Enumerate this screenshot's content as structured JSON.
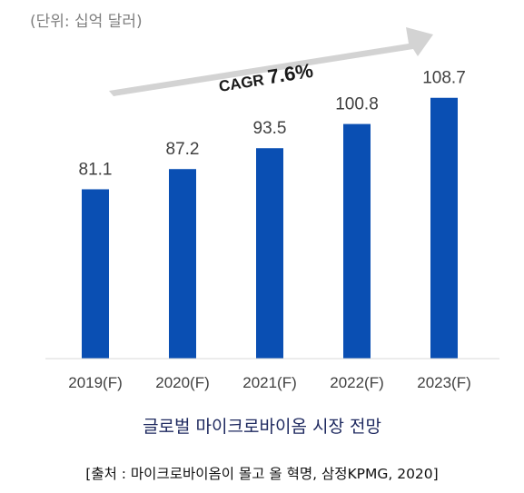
{
  "chart_data": {
    "type": "bar",
    "unit_note": "(단위: 십억 달러)",
    "categories": [
      "2019(F)",
      "2020(F)",
      "2021(F)",
      "2022(F)",
      "2023(F)"
    ],
    "values": [
      81.1,
      87.2,
      93.5,
      100.8,
      108.7
    ],
    "value_labels": [
      "81.1",
      "87.2",
      "93.5",
      "100.8",
      "108.7"
    ],
    "ylim": [
      30,
      110
    ],
    "grid": false,
    "bar_color": "#0a4fb3",
    "annotation": {
      "prefix": "CAGR ",
      "value": "7.6%",
      "arrow_color": "#d3d3d3"
    },
    "title": "글로벌 마이크로바이옴 시장 전망",
    "source": "[출처 : 마이크로바이옴이 몰고 올 혁명, 삼정KPMG, 2020]"
  }
}
